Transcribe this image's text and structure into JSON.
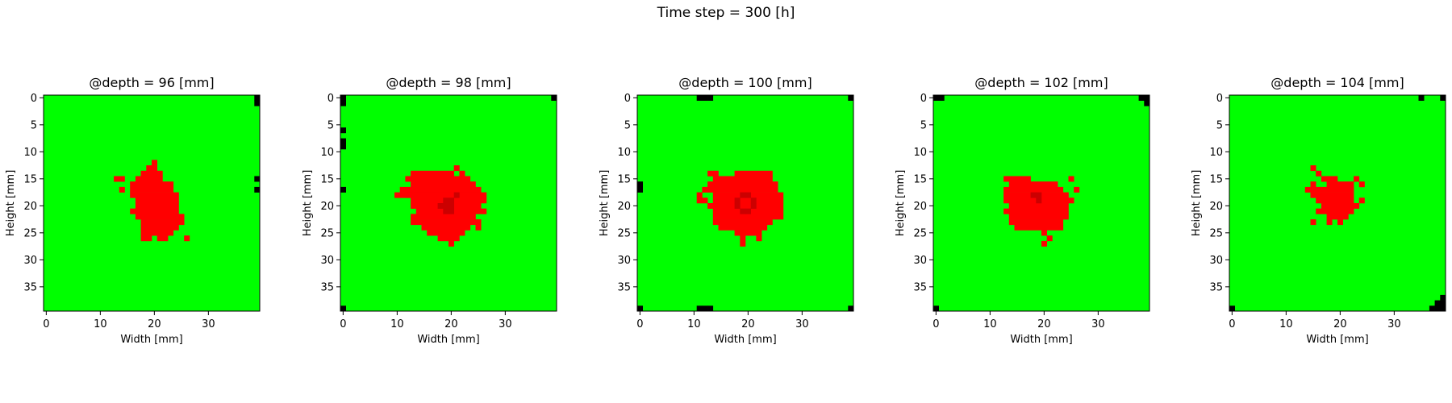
{
  "suptitle": "Time step = 300 [h]",
  "colors": {
    "healthy": "#00ff00",
    "infected": "#ff0000",
    "dead": "#000000",
    "dark_red": "#cc0000"
  },
  "chart_data": [
    {
      "type": "heatmap",
      "title": "@depth = 96 [mm]",
      "xlabel": "Width [mm]",
      "ylabel": "Height [mm]",
      "xticks": [
        0,
        10,
        20,
        30
      ],
      "yticks": [
        0,
        5,
        10,
        15,
        20,
        25,
        30,
        35
      ],
      "grid_size": [
        40,
        40
      ],
      "background": "healthy",
      "infected_rows": [
        [
          12,
          20,
          20
        ],
        [
          13,
          19,
          20
        ],
        [
          14,
          18,
          21
        ],
        [
          15,
          13,
          14
        ],
        [
          15,
          17,
          21
        ],
        [
          16,
          16,
          23
        ],
        [
          17,
          14,
          14
        ],
        [
          17,
          16,
          23
        ],
        [
          18,
          16,
          24
        ],
        [
          19,
          17,
          24
        ],
        [
          20,
          17,
          24
        ],
        [
          21,
          16,
          24
        ],
        [
          22,
          17,
          25
        ],
        [
          23,
          18,
          25
        ],
        [
          24,
          18,
          24
        ],
        [
          25,
          18,
          23
        ],
        [
          26,
          18,
          19
        ],
        [
          26,
          21,
          22
        ],
        [
          26,
          26,
          26
        ]
      ],
      "dark_cells": [],
      "dead_cells": [
        [
          0,
          39
        ],
        [
          1,
          39
        ],
        [
          15,
          39
        ],
        [
          17,
          39
        ]
      ]
    },
    {
      "type": "heatmap",
      "title": "@depth = 98 [mm]",
      "xlabel": "Width [mm]",
      "ylabel": "Height [mm]",
      "xticks": [
        0,
        10,
        20,
        30
      ],
      "yticks": [
        0,
        5,
        10,
        15,
        20,
        25,
        30,
        35
      ],
      "grid_size": [
        40,
        40
      ],
      "background": "healthy",
      "infected_rows": [
        [
          13,
          21,
          21
        ],
        [
          14,
          13,
          20
        ],
        [
          14,
          22,
          22
        ],
        [
          15,
          12,
          23
        ],
        [
          16,
          13,
          24
        ],
        [
          17,
          11,
          25
        ],
        [
          18,
          10,
          25
        ],
        [
          18,
          12,
          26
        ],
        [
          19,
          13,
          26
        ],
        [
          20,
          13,
          25
        ],
        [
          21,
          14,
          26
        ],
        [
          22,
          13,
          24
        ],
        [
          23,
          13,
          25
        ],
        [
          24,
          15,
          23
        ],
        [
          24,
          25,
          25
        ],
        [
          25,
          16,
          22
        ],
        [
          26,
          18,
          21
        ],
        [
          27,
          20,
          20
        ]
      ],
      "dark_cells": [
        [
          19,
          19
        ],
        [
          19,
          20
        ],
        [
          20,
          18
        ],
        [
          20,
          19
        ],
        [
          20,
          20
        ],
        [
          21,
          19
        ],
        [
          21,
          20
        ],
        [
          18,
          21
        ]
      ],
      "dead_cells": [
        [
          0,
          0
        ],
        [
          1,
          0
        ],
        [
          0,
          39
        ],
        [
          6,
          0
        ],
        [
          8,
          0
        ],
        [
          9,
          0
        ],
        [
          17,
          0
        ],
        [
          39,
          0
        ]
      ]
    },
    {
      "type": "heatmap",
      "title": "@depth = 100 [mm]",
      "xlabel": "Width [mm]",
      "ylabel": "Height [mm]",
      "xticks": [
        0,
        10,
        20,
        30
      ],
      "yticks": [
        0,
        5,
        10,
        15,
        20,
        25,
        30,
        35
      ],
      "grid_size": [
        40,
        40
      ],
      "background": "healthy",
      "infected_rows": [
        [
          14,
          13,
          14
        ],
        [
          14,
          18,
          24
        ],
        [
          15,
          14,
          24
        ],
        [
          16,
          13,
          25
        ],
        [
          17,
          12,
          13
        ],
        [
          17,
          14,
          25
        ],
        [
          18,
          11,
          11
        ],
        [
          18,
          14,
          26
        ],
        [
          19,
          11,
          12
        ],
        [
          19,
          14,
          26
        ],
        [
          20,
          13,
          26
        ],
        [
          21,
          14,
          26
        ],
        [
          22,
          14,
          26
        ],
        [
          23,
          14,
          24
        ],
        [
          24,
          15,
          23
        ],
        [
          25,
          18,
          22
        ],
        [
          26,
          19,
          19
        ],
        [
          26,
          22,
          22
        ],
        [
          27,
          19,
          19
        ]
      ],
      "dark_cells": [
        [
          18,
          19
        ],
        [
          18,
          20
        ],
        [
          19,
          18
        ],
        [
          19,
          21
        ],
        [
          20,
          18
        ],
        [
          20,
          21
        ],
        [
          21,
          19
        ],
        [
          21,
          20
        ]
      ],
      "dead_cells": [
        [
          0,
          11
        ],
        [
          0,
          12
        ],
        [
          0,
          13
        ],
        [
          0,
          39
        ],
        [
          16,
          0
        ],
        [
          17,
          0
        ],
        [
          39,
          0
        ],
        [
          39,
          11
        ],
        [
          39,
          12
        ],
        [
          39,
          13
        ],
        [
          39,
          39
        ]
      ]
    },
    {
      "type": "heatmap",
      "title": "@depth = 102 [mm]",
      "xlabel": "Width [mm]",
      "ylabel": "Height [mm]",
      "xticks": [
        0,
        10,
        20,
        30
      ],
      "yticks": [
        0,
        5,
        10,
        15,
        20,
        25,
        30,
        35
      ],
      "grid_size": [
        40,
        40
      ],
      "background": "healthy",
      "infected_rows": [
        [
          15,
          13,
          17
        ],
        [
          15,
          25,
          25
        ],
        [
          16,
          14,
          22
        ],
        [
          17,
          13,
          23
        ],
        [
          17,
          26,
          26
        ],
        [
          18,
          13,
          24
        ],
        [
          19,
          13,
          25
        ],
        [
          20,
          14,
          24
        ],
        [
          21,
          13,
          24
        ],
        [
          22,
          14,
          24
        ],
        [
          23,
          14,
          23
        ],
        [
          24,
          15,
          23
        ],
        [
          25,
          20,
          20
        ],
        [
          26,
          21,
          21
        ],
        [
          27,
          20,
          20
        ]
      ],
      "dark_cells": [
        [
          18,
          18
        ],
        [
          18,
          19
        ],
        [
          19,
          19
        ]
      ],
      "dead_cells": [
        [
          0,
          0
        ],
        [
          0,
          1
        ],
        [
          0,
          38
        ],
        [
          0,
          39
        ],
        [
          1,
          39
        ],
        [
          39,
          0
        ]
      ]
    },
    {
      "type": "heatmap",
      "title": "@depth = 104 [mm]",
      "xlabel": "Width [mm]",
      "ylabel": "Height [mm]",
      "xticks": [
        0,
        10,
        20,
        30
      ],
      "yticks": [
        0,
        5,
        10,
        15,
        20,
        25,
        30,
        35
      ],
      "grid_size": [
        40,
        40
      ],
      "background": "healthy",
      "infected_rows": [
        [
          13,
          15,
          15
        ],
        [
          14,
          16,
          16
        ],
        [
          15,
          17,
          19
        ],
        [
          15,
          23,
          23
        ],
        [
          16,
          15,
          15
        ],
        [
          16,
          18,
          22
        ],
        [
          16,
          24,
          24
        ],
        [
          17,
          14,
          22
        ],
        [
          18,
          15,
          22
        ],
        [
          19,
          16,
          22
        ],
        [
          19,
          24,
          24
        ],
        [
          20,
          17,
          23
        ],
        [
          21,
          16,
          22
        ],
        [
          22,
          18,
          21
        ],
        [
          23,
          15,
          15
        ],
        [
          23,
          18,
          18
        ],
        [
          23,
          20,
          20
        ]
      ],
      "dark_cells": [],
      "dead_cells": [
        [
          0,
          35
        ],
        [
          0,
          39
        ],
        [
          37,
          39
        ],
        [
          38,
          38
        ],
        [
          38,
          39
        ],
        [
          39,
          0
        ],
        [
          39,
          37
        ],
        [
          39,
          38
        ],
        [
          39,
          39
        ]
      ]
    }
  ]
}
